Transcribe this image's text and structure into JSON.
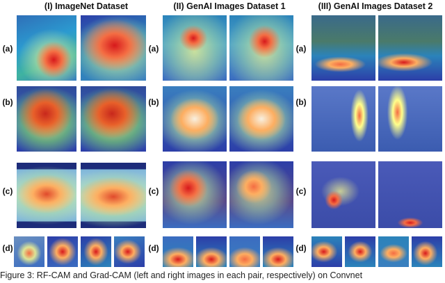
{
  "columns": [
    {
      "title": "(I) ImageNet Dataset"
    },
    {
      "title": "(II) GenAI Images Dataset 1"
    },
    {
      "title": "(III) GenAI Images Dataset 2"
    }
  ],
  "row_labels": [
    "(a)",
    "(b)",
    "(c)",
    "(d)"
  ],
  "caption": "Figure 3: RF-CAM and Grad-CAM (left and right images in each pair, respectively) on Convnet",
  "colors": {
    "heat_hot": "#d7191c",
    "heat_warm": "#fdae61",
    "heat_mid": "#ffff8c",
    "heat_cool": "#2b83ba",
    "heat_cold": "#2c3ea8"
  }
}
